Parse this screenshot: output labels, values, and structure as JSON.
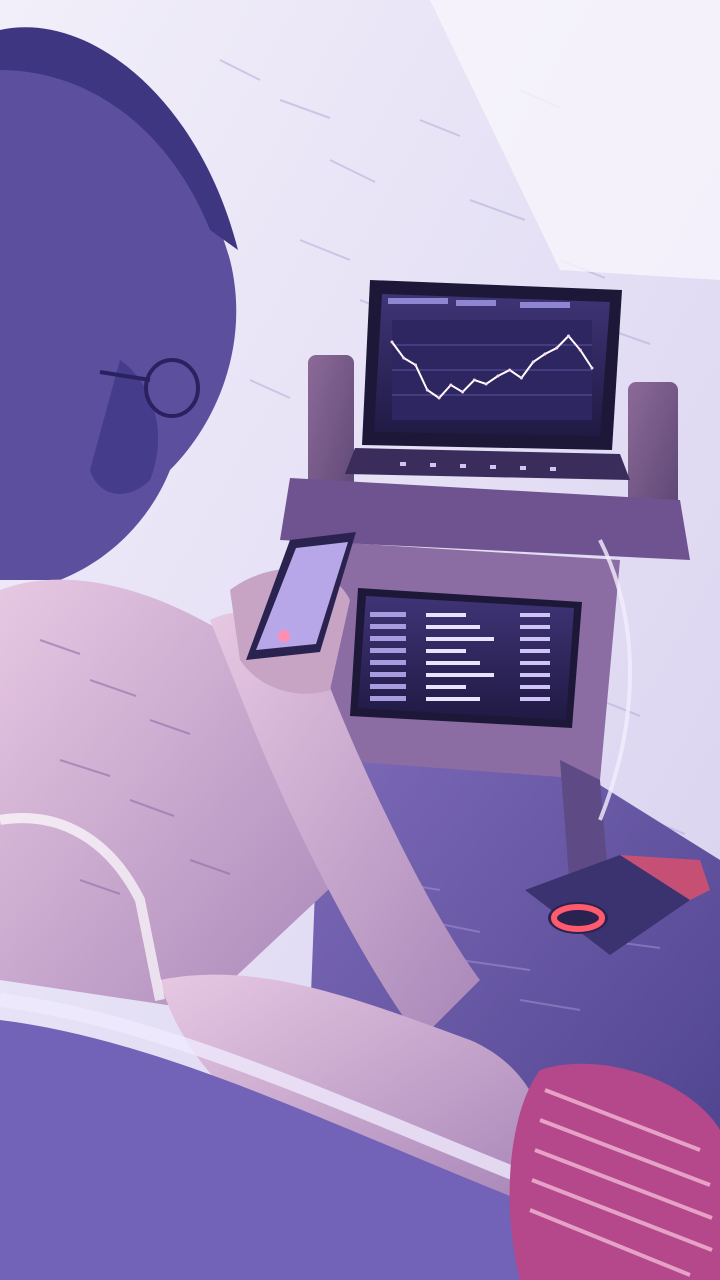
{
  "scene": {
    "kind": "stylized-photo",
    "palette": {
      "wall": "#ece8f6",
      "shadow": "#5b4f9e",
      "skin": "#c7a3c4",
      "wood": "#7a5a86",
      "screen": "#2b2454",
      "chart_line": "#ffffff",
      "accent_red": "#ff5a6e"
    }
  },
  "laptop_top": {
    "chart_data": {
      "type": "line",
      "title": "",
      "xlabel": "",
      "ylabel": "",
      "ylim": [
        0,
        100
      ],
      "x": [
        1,
        2,
        3,
        4,
        5,
        6,
        7,
        8,
        9,
        10,
        11,
        12,
        13,
        14,
        15,
        16,
        17,
        18
      ],
      "series": [
        {
          "name": "",
          "values": [
            78,
            62,
            55,
            30,
            22,
            35,
            28,
            40,
            36,
            44,
            50,
            42,
            58,
            66,
            72,
            84,
            70,
            52
          ]
        }
      ],
      "grid": true
    }
  },
  "laptop_bottom": {
    "rows": 8
  }
}
